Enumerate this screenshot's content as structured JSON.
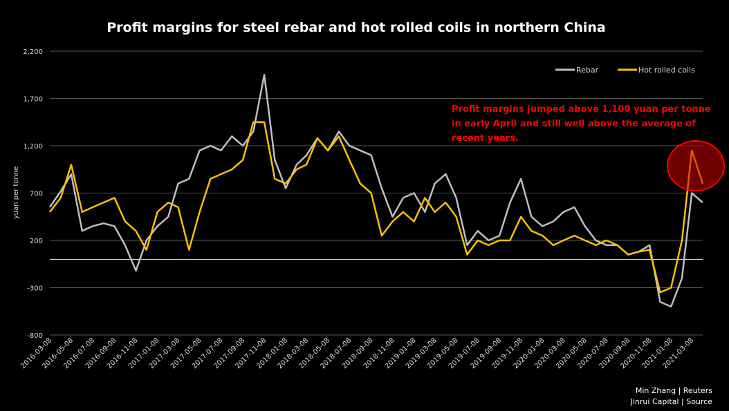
{
  "colors": {
    "background": "#000000",
    "rebar": "#bfbfbf",
    "hrc": "#ffc000",
    "annotation": "#ff0000",
    "gridline": "#595959"
  },
  "chart_data": {
    "type": "line",
    "title": "Profit margins for steel rebar and hot rolled coils in northern China",
    "ylabel": "yuan per tonne",
    "xlabel": "",
    "ylim": [
      -800,
      2200
    ],
    "yticks": [
      "2,200",
      "1,700",
      "1,200",
      "700",
      "200",
      "-300",
      "-800"
    ],
    "ytick_values": [
      2200,
      1700,
      1200,
      700,
      200,
      -300,
      -800
    ],
    "grid": true,
    "legend": "top-right",
    "x": [
      "2016-03-08",
      "2016-04-08",
      "2016-05-08",
      "2016-06-08",
      "2016-07-08",
      "2016-08-08",
      "2016-09-08",
      "2016-10-08",
      "2016-11-08",
      "2016-12-08",
      "2017-01-08",
      "2017-02-08",
      "2017-03-08",
      "2017-04-08",
      "2017-05-08",
      "2017-06-08",
      "2017-07-08",
      "2017-08-08",
      "2017-09-08",
      "2017-10-08",
      "2017-11-08",
      "2017-12-08",
      "2018-01-08",
      "2018-02-08",
      "2018-03-08",
      "2018-04-08",
      "2018-05-08",
      "2018-06-08",
      "2018-07-08",
      "2018-08-08",
      "2018-09-08",
      "2018-10-08",
      "2018-11-08",
      "2018-12-08",
      "2019-01-08",
      "2019-02-08",
      "2019-03-08",
      "2019-04-08",
      "2019-05-08",
      "2019-06-08",
      "2019-07-08",
      "2019-08-08",
      "2019-09-08",
      "2019-10-08",
      "2019-11-08",
      "2019-12-08",
      "2020-01-08",
      "2020-02-08",
      "2020-03-08",
      "2020-04-08",
      "2020-05-08",
      "2020-06-08",
      "2020-07-08",
      "2020-08-08",
      "2020-09-08",
      "2020-10-08",
      "2020-11-08",
      "2020-12-08",
      "2021-01-08",
      "2021-02-08",
      "2021-03-08",
      "2021-04-08"
    ],
    "xtick_labels": [
      "2016-03-08",
      "2016-05-08",
      "2016-07-08",
      "2016-09-08",
      "2016-11-08",
      "2017-01-08",
      "2017-03-08",
      "2017-05-08",
      "2017-07-08",
      "2017-09-08",
      "2017-11-08",
      "2018-01-08",
      "2018-03-08",
      "2018-05-08",
      "2018-07-08",
      "2018-09-08",
      "2018-11-08",
      "2019-01-08",
      "2019-03-08",
      "2019-05-08",
      "2019-07-08",
      "2019-09-08",
      "2019-11-08",
      "2020-01-08",
      "2020-03-08",
      "2020-05-08",
      "2020-07-08",
      "2020-09-08",
      "2020-11-08",
      "2021-01-08",
      "2021-03-08"
    ],
    "series": [
      {
        "name": "Rebar",
        "color": "#bfbfbf",
        "values": [
          550,
          720,
          900,
          300,
          350,
          380,
          350,
          150,
          -120,
          200,
          350,
          450,
          800,
          850,
          1150,
          1200,
          1150,
          1300,
          1200,
          1350,
          1950,
          1050,
          750,
          1000,
          1100,
          1280,
          1150,
          1350,
          1200,
          1150,
          1100,
          750,
          450,
          650,
          700,
          500,
          800,
          900,
          650,
          150,
          300,
          200,
          250,
          600,
          850,
          450,
          350,
          400,
          500,
          550,
          350,
          200,
          150,
          150,
          50,
          80,
          150,
          -450,
          -500,
          -200,
          700,
          600
        ]
      },
      {
        "name": "Hot rolled coils",
        "color": "#ffc000",
        "values": [
          500,
          650,
          1000,
          500,
          550,
          600,
          650,
          400,
          300,
          100,
          500,
          600,
          550,
          100,
          500,
          850,
          900,
          950,
          1050,
          1450,
          1450,
          850,
          800,
          950,
          1000,
          1280,
          1150,
          1300,
          1050,
          800,
          700,
          250,
          400,
          500,
          400,
          650,
          500,
          600,
          450,
          50,
          200,
          150,
          200,
          200,
          450,
          300,
          250,
          150,
          200,
          250,
          200,
          150,
          200,
          150,
          50,
          80,
          100,
          -350,
          -300,
          200,
          1150,
          800
        ]
      }
    ],
    "annotations": [
      "Profit margins jumped above 1,100 yuan per tonne",
      "in early April and still well above the average of",
      "recent years."
    ],
    "credits": [
      "Min Zhang | Reuters",
      "Jinrui Capital | Source"
    ]
  }
}
